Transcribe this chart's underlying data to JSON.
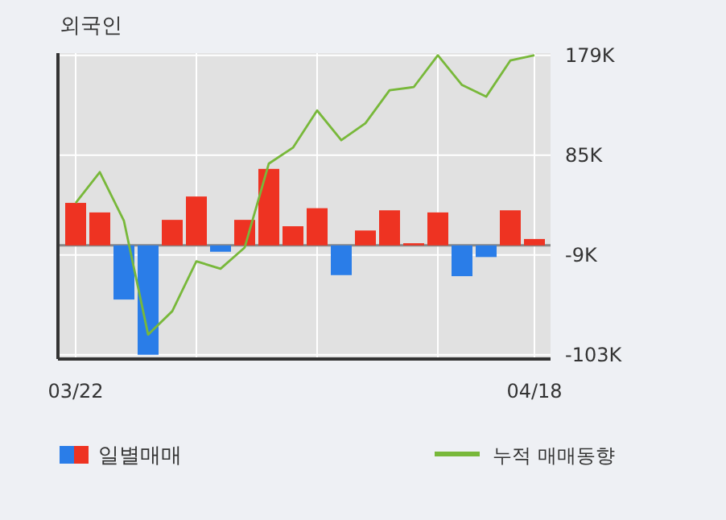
{
  "chart_data": {
    "type": "bar",
    "title": "외국인",
    "categories": [
      "03/22",
      null,
      null,
      null,
      null,
      null,
      null,
      null,
      null,
      null,
      null,
      null,
      null,
      null,
      null,
      null,
      null,
      null,
      null,
      "04/18"
    ],
    "series": [
      {
        "name": "일별매매",
        "colors": [
          "#ee3322",
          "#ee3322",
          "#2a7de8",
          "#2a7de8",
          "#ee3322",
          "#ee3322",
          "#2a7de8",
          "#ee3322",
          "#ee3322",
          "#ee3322",
          "#ee3322",
          "#2a7de8",
          "#ee3322",
          "#ee3322",
          "#ee3322",
          "#ee3322",
          "#2a7de8",
          "#2a7de8",
          "#ee3322",
          "#ee3322"
        ],
        "values": [
          40,
          31,
          -51,
          -103,
          24,
          46,
          -6,
          24,
          72,
          18,
          35,
          -28,
          14,
          33,
          2,
          31,
          -29,
          -11,
          33,
          6
        ]
      },
      {
        "name": "누적 매매동향",
        "type": "line",
        "color": "#78b83a",
        "values": [
          40,
          69,
          23,
          -84,
          -62,
          -15,
          -22,
          -2,
          77,
          92,
          127,
          99,
          115,
          146,
          149,
          179,
          151,
          140,
          174,
          179
        ]
      }
    ],
    "ylim": [
      -107,
      181
    ],
    "yticks": [
      {
        "value": 179,
        "label": "179K"
      },
      {
        "value": 85,
        "label": "85K"
      },
      {
        "value": -9,
        "label": "-9K"
      },
      {
        "value": -103,
        "label": "-103K"
      }
    ],
    "grid": true,
    "legend": "bottom"
  }
}
